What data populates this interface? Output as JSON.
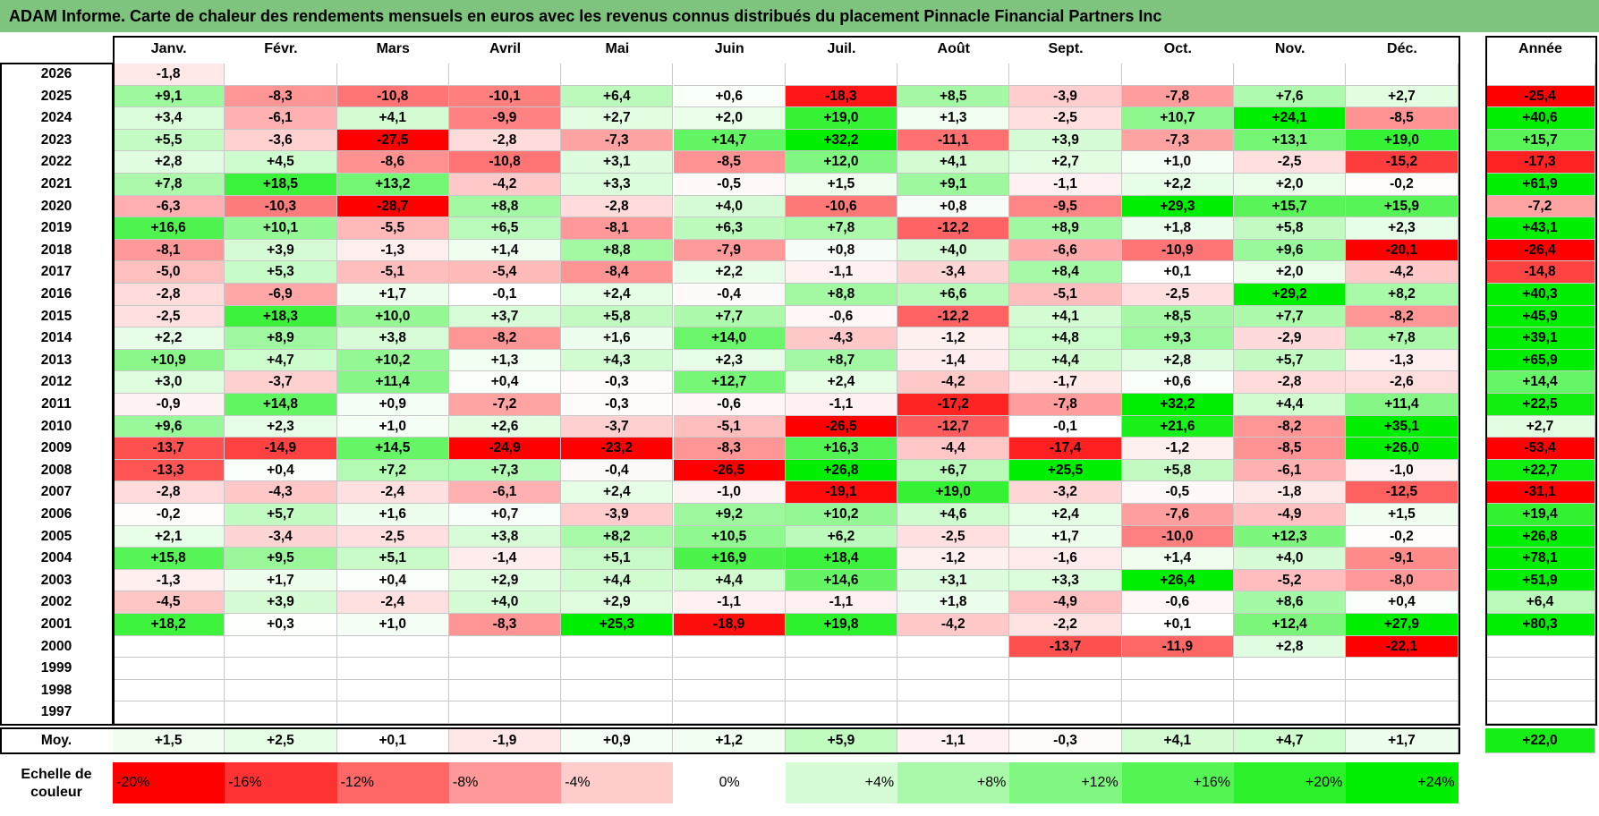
{
  "title": "ADAM Informe. Carte de chaleur des rendements mensuels en euros avec les revenus connus distribués du placement Pinnacle Financial Partners Inc",
  "chart_data": {
    "type": "heatmap",
    "months": [
      "Janv.",
      "Févr.",
      "Mars",
      "Avril",
      "Mai",
      "Juin",
      "Juil.",
      "Août",
      "Sept.",
      "Oct.",
      "Nov.",
      "Déc."
    ],
    "year_header": "Année",
    "rows": [
      {
        "year": "2026",
        "values": [
          "-1,8",
          "",
          "",
          "",
          "",
          "",
          "",
          "",
          "",
          "",
          "",
          ""
        ],
        "annual": ""
      },
      {
        "year": "2025",
        "values": [
          "+9,1",
          "-8,3",
          "-10,8",
          "-10,1",
          "+6,4",
          "+0,6",
          "-18,3",
          "+8,5",
          "-3,9",
          "-7,8",
          "+7,6",
          "+2,7"
        ],
        "annual": "-25,4"
      },
      {
        "year": "2024",
        "values": [
          "+3,4",
          "-6,1",
          "+4,1",
          "-9,9",
          "+2,7",
          "+2,0",
          "+19,0",
          "+1,3",
          "-2,5",
          "+10,7",
          "+24,1",
          "-8,5"
        ],
        "annual": "+40,6"
      },
      {
        "year": "2023",
        "values": [
          "+5,5",
          "-3,6",
          "-27,5",
          "-2,8",
          "-7,3",
          "+14,7",
          "+32,2",
          "-11,1",
          "+3,9",
          "-7,3",
          "+13,1",
          "+19,0"
        ],
        "annual": "+15,7"
      },
      {
        "year": "2022",
        "values": [
          "+2,8",
          "+4,5",
          "-8,6",
          "-10,8",
          "+3,1",
          "-8,5",
          "+12,0",
          "+4,1",
          "+2,7",
          "+1,0",
          "-2,5",
          "-15,2"
        ],
        "annual": "-17,3"
      },
      {
        "year": "2021",
        "values": [
          "+7,8",
          "+18,5",
          "+13,2",
          "-4,2",
          "+3,3",
          "-0,5",
          "+1,5",
          "+9,1",
          "-1,1",
          "+2,2",
          "+2,0",
          "-0,2"
        ],
        "annual": "+61,9"
      },
      {
        "year": "2020",
        "values": [
          "-6,3",
          "-10,3",
          "-28,7",
          "+8,8",
          "-2,8",
          "+4,0",
          "-10,6",
          "+0,8",
          "-9,5",
          "+29,3",
          "+15,7",
          "+15,9"
        ],
        "annual": "-7,2"
      },
      {
        "year": "2019",
        "values": [
          "+16,6",
          "+10,1",
          "-5,5",
          "+6,5",
          "-8,1",
          "+6,3",
          "+7,8",
          "-12,2",
          "+8,9",
          "+1,8",
          "+5,8",
          "+2,3"
        ],
        "annual": "+43,1"
      },
      {
        "year": "2018",
        "values": [
          "-8,1",
          "+3,9",
          "-1,3",
          "+1,4",
          "+8,8",
          "-7,9",
          "+0,8",
          "+4,0",
          "-6,6",
          "-10,9",
          "+9,6",
          "-20,1"
        ],
        "annual": "-26,4"
      },
      {
        "year": "2017",
        "values": [
          "-5,0",
          "+5,3",
          "-5,1",
          "-5,4",
          "-8,4",
          "+2,2",
          "-1,1",
          "-3,4",
          "+8,4",
          "+0,1",
          "+2,0",
          "-4,2"
        ],
        "annual": "-14,8"
      },
      {
        "year": "2016",
        "values": [
          "-2,8",
          "-6,9",
          "+1,7",
          "-0,1",
          "+2,4",
          "-0,4",
          "+8,8",
          "+6,6",
          "-5,1",
          "-2,5",
          "+29,2",
          "+8,2"
        ],
        "annual": "+40,3"
      },
      {
        "year": "2015",
        "values": [
          "-2,5",
          "+18,3",
          "+10,0",
          "+3,7",
          "+5,8",
          "+7,7",
          "-0,6",
          "-12,2",
          "+4,1",
          "+8,5",
          "+7,7",
          "-8,2"
        ],
        "annual": "+45,9"
      },
      {
        "year": "2014",
        "values": [
          "+2,2",
          "+8,9",
          "+3,8",
          "-8,2",
          "+1,6",
          "+14,0",
          "-4,3",
          "-1,2",
          "+4,8",
          "+9,3",
          "-2,9",
          "+7,8"
        ],
        "annual": "+39,1"
      },
      {
        "year": "2013",
        "values": [
          "+10,9",
          "+4,7",
          "+10,2",
          "+1,3",
          "+4,3",
          "+2,3",
          "+8,7",
          "-1,4",
          "+4,4",
          "+2,8",
          "+5,7",
          "-1,3"
        ],
        "annual": "+65,9"
      },
      {
        "year": "2012",
        "values": [
          "+3,0",
          "-3,7",
          "+11,4",
          "+0,4",
          "-0,3",
          "+12,7",
          "+2,4",
          "-4,2",
          "-1,7",
          "+0,6",
          "-2,8",
          "-2,6"
        ],
        "annual": "+14,4"
      },
      {
        "year": "2011",
        "values": [
          "-0,9",
          "+14,8",
          "+0,9",
          "-7,2",
          "-0,3",
          "-0,6",
          "-1,1",
          "-17,2",
          "-7,8",
          "+32,2",
          "+4,4",
          "+11,4"
        ],
        "annual": "+22,5"
      },
      {
        "year": "2010",
        "values": [
          "+9,6",
          "+2,3",
          "+1,0",
          "+2,6",
          "-3,7",
          "-5,1",
          "-26,5",
          "-12,7",
          "-0,1",
          "+21,6",
          "-8,2",
          "+35,1"
        ],
        "annual": "+2,7"
      },
      {
        "year": "2009",
        "values": [
          "-13,7",
          "-14,9",
          "+14,5",
          "-24,9",
          "-23,2",
          "-8,3",
          "+16,3",
          "-4,4",
          "-17,4",
          "-1,2",
          "-8,5",
          "+26,0"
        ],
        "annual": "-53,4"
      },
      {
        "year": "2008",
        "values": [
          "-13,3",
          "+0,4",
          "+7,2",
          "+7,3",
          "-0,4",
          "-26,5",
          "+26,8",
          "+6,7",
          "+25,5",
          "+5,8",
          "-6,1",
          "-1,0"
        ],
        "annual": "+22,7"
      },
      {
        "year": "2007",
        "values": [
          "-2,8",
          "-4,3",
          "-2,4",
          "-6,1",
          "+2,4",
          "-1,0",
          "-19,1",
          "+19,0",
          "-3,2",
          "-0,5",
          "-1,8",
          "-12,5"
        ],
        "annual": "-31,1"
      },
      {
        "year": "2006",
        "values": [
          "-0,2",
          "+5,7",
          "+1,6",
          "+0,7",
          "-3,9",
          "+9,2",
          "+10,2",
          "+4,6",
          "+2,4",
          "-7,6",
          "-4,9",
          "+1,5"
        ],
        "annual": "+19,4"
      },
      {
        "year": "2005",
        "values": [
          "+2,1",
          "-3,4",
          "-2,5",
          "+3,8",
          "+8,2",
          "+10,5",
          "+6,2",
          "-2,5",
          "+1,7",
          "-10,0",
          "+12,3",
          "-0,2"
        ],
        "annual": "+26,8"
      },
      {
        "year": "2004",
        "values": [
          "+15,8",
          "+9,5",
          "+5,1",
          "-1,4",
          "+5,1",
          "+16,9",
          "+18,4",
          "-1,2",
          "-1,6",
          "+1,4",
          "+4,0",
          "-9,1"
        ],
        "annual": "+78,1"
      },
      {
        "year": "2003",
        "values": [
          "-1,3",
          "+1,7",
          "+0,4",
          "+2,9",
          "+4,4",
          "+4,4",
          "+14,6",
          "+3,1",
          "+3,3",
          "+26,4",
          "-5,2",
          "-8,0"
        ],
        "annual": "+51,9"
      },
      {
        "year": "2002",
        "values": [
          "-4,5",
          "+3,9",
          "-2,4",
          "+4,0",
          "+2,9",
          "-1,1",
          "-1,1",
          "+1,8",
          "-4,9",
          "-0,6",
          "+8,6",
          "+0,4"
        ],
        "annual": "+6,4"
      },
      {
        "year": "2001",
        "values": [
          "+18,2",
          "+0,3",
          "+1,0",
          "-8,3",
          "+25,3",
          "-18,9",
          "+19,8",
          "-4,2",
          "-2,2",
          "+0,1",
          "+12,4",
          "+27,9"
        ],
        "annual": "+80,3"
      },
      {
        "year": "2000",
        "values": [
          "",
          "",
          "",
          "",
          "",
          "",
          "",
          "",
          "-13,7",
          "-11,9",
          "+2,8",
          "-22,1"
        ],
        "annual": ""
      },
      {
        "year": "1999",
        "values": [
          "",
          "",
          "",
          "",
          "",
          "",
          "",
          "",
          "",
          "",
          "",
          ""
        ],
        "annual": ""
      },
      {
        "year": "1998",
        "values": [
          "",
          "",
          "",
          "",
          "",
          "",
          "",
          "",
          "",
          "",
          "",
          ""
        ],
        "annual": ""
      },
      {
        "year": "1997",
        "values": [
          "",
          "",
          "",
          "",
          "",
          "",
          "",
          "",
          "",
          "",
          "",
          ""
        ],
        "annual": ""
      }
    ],
    "average": {
      "label": "Moy.",
      "values": [
        "+1,5",
        "+2,5",
        "+0,1",
        "-1,9",
        "+0,9",
        "+1,2",
        "+5,9",
        "-1,1",
        "-0,3",
        "+4,1",
        "+4,7",
        "+1,7"
      ],
      "annual": "+22,0"
    },
    "scale": {
      "label": "Echelle de couleur",
      "steps": [
        "-20%",
        "-16%",
        "-12%",
        "-8%",
        "-4%",
        "0%",
        "+4%",
        "+8%",
        "+12%",
        "+16%",
        "+20%",
        "+24%"
      ]
    },
    "colors": {
      "negative": "#ff0000",
      "neutral": "#ffffff",
      "positive": "#00ee00",
      "title_bar": "#7ec47e"
    }
  }
}
